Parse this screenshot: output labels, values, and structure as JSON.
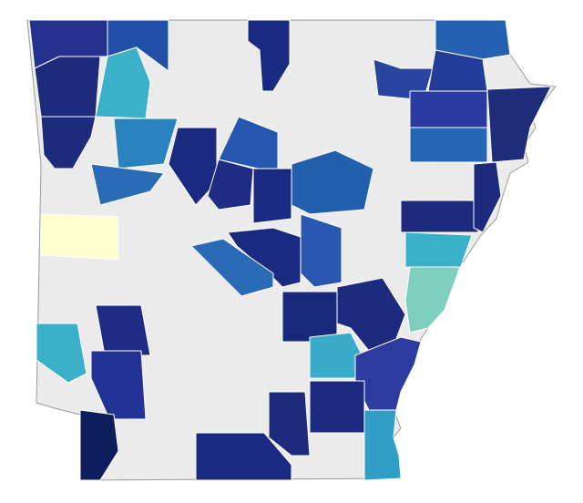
{
  "map": {
    "base_color": "#ebebeb",
    "border_color": "#ffffff",
    "region_colors": [
      "#24318f",
      "#2250a8",
      "#1a2a80",
      "#2660b0",
      "#1e2b7d",
      "#3bb0c9",
      "#2945a0",
      "#233c9a",
      "#1e2b7d",
      "#1e2d7a",
      "#2a3aa0",
      "#2468b5",
      "#2a82be",
      "#1a2a80",
      "#2657b0",
      "#2a6bb5",
      "#ffffd0",
      "#1f2c85",
      "#1a2a80",
      "#2260ad",
      "#1e2b7d",
      "#1e2b7d",
      "#1a2a80",
      "#2a58b0",
      "#2a6bb5",
      "#3ab0c8",
      "#7fcfbe",
      "#18287a",
      "#1e2b7d",
      "#3aabc8",
      "#2d3a9e",
      "#3ab0c8",
      "#1f2c85",
      "#233395",
      "#0e1e5c",
      "#1a2a80",
      "#1e2b7d",
      "#1c2b7f",
      "#2f9ec4"
    ]
  }
}
